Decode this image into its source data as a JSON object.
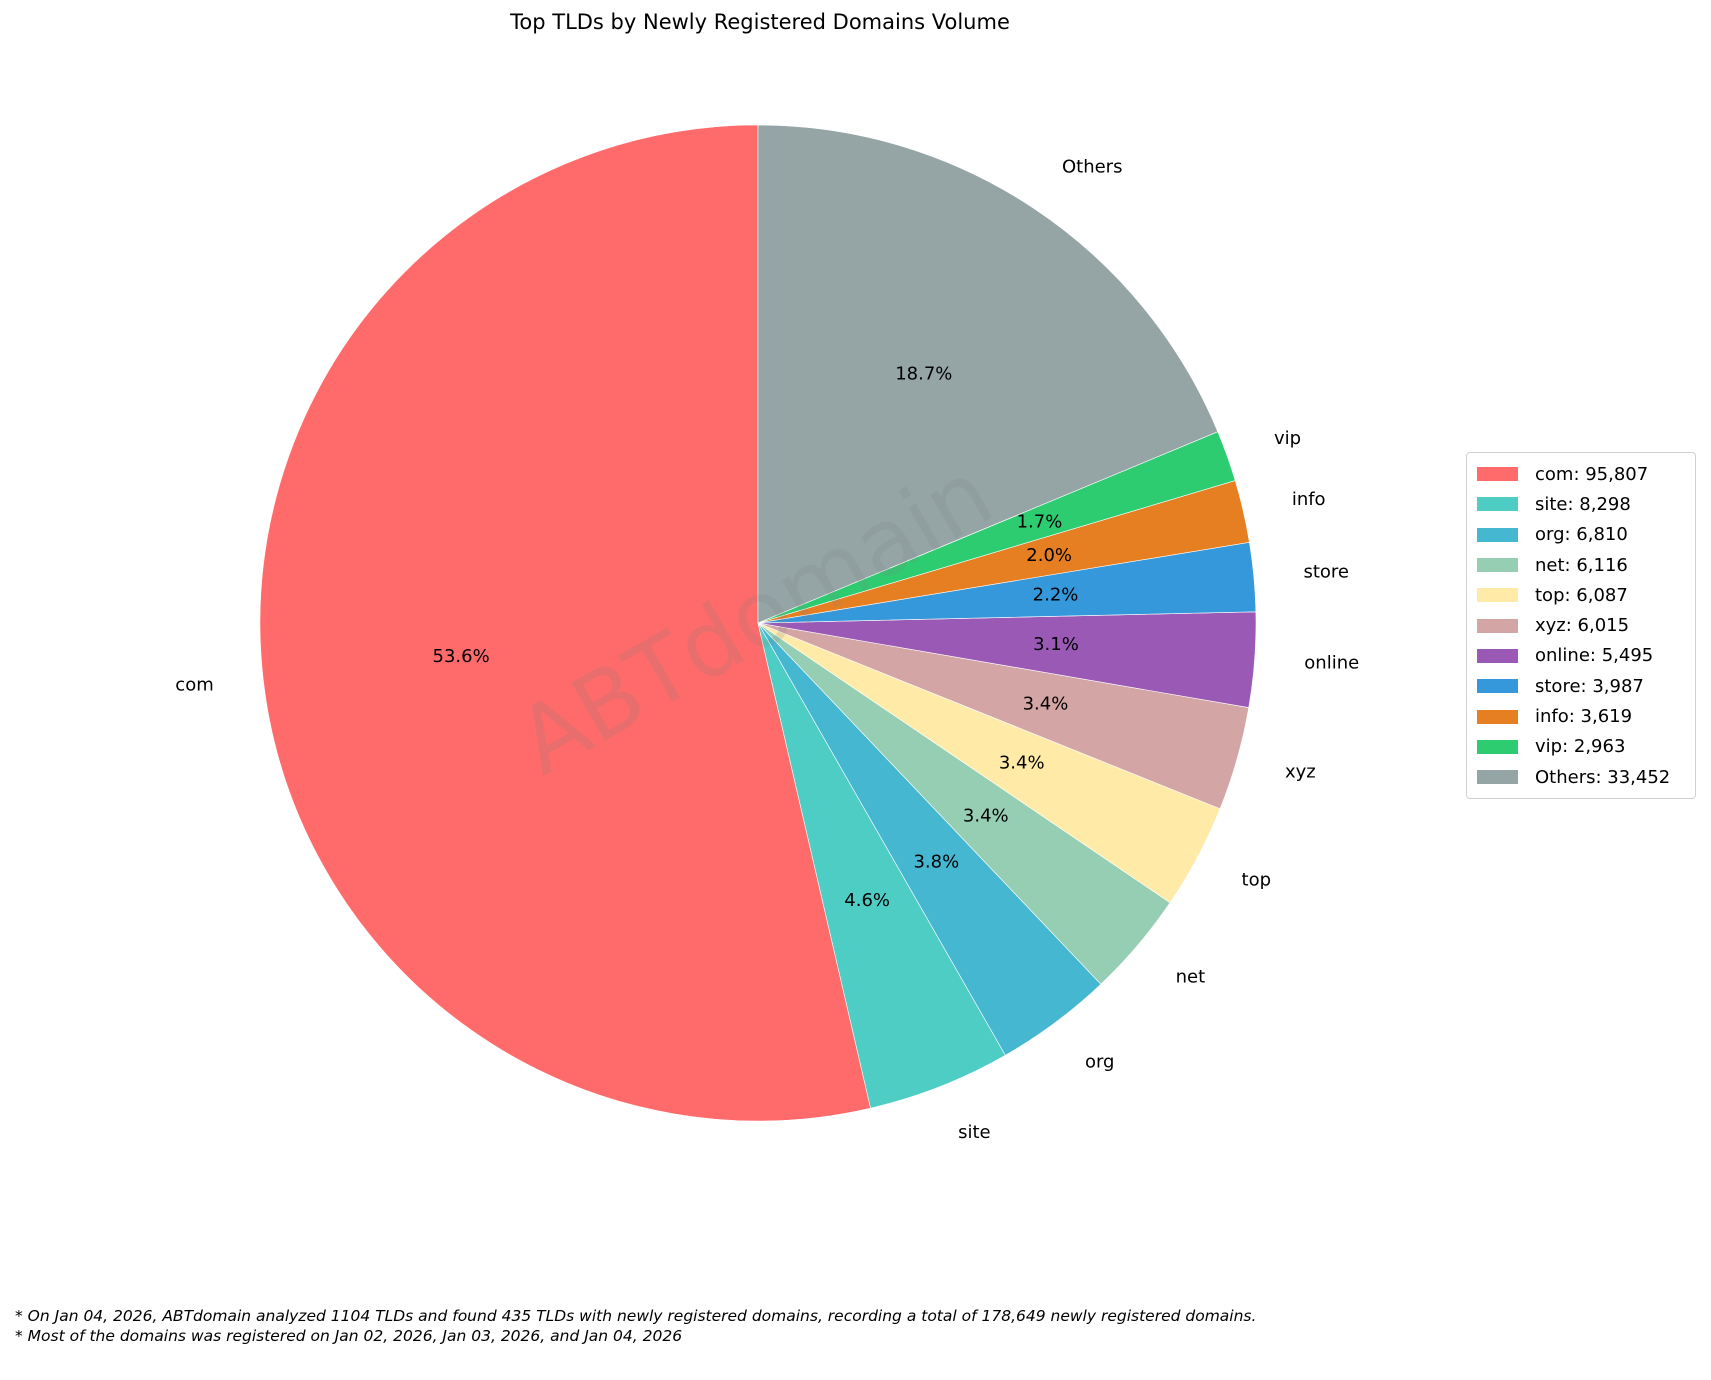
{
  "title": "Top TLDs by Newly Registered Domains Volume",
  "watermark": "ABTdomain",
  "footer": {
    "line1": "* On Jan 04, 2026, ABTdomain analyzed 1104 TLDs and found 435 TLDs with newly registered domains, recording a total of 178,649 newly registered domains.",
    "line2": "* Most of the domains was registered on Jan 02, 2026, Jan 03, 2026, and Jan 04, 2026"
  },
  "legend": [
    {
      "label": "com: 95,807"
    },
    {
      "label": "site: 8,298"
    },
    {
      "label": "org: 6,810"
    },
    {
      "label": "net: 6,116"
    },
    {
      "label": "top: 6,087"
    },
    {
      "label": "xyz: 6,015"
    },
    {
      "label": "online: 5,495"
    },
    {
      "label": "store: 3,987"
    },
    {
      "label": "info: 3,619"
    },
    {
      "label": "vip: 2,963"
    },
    {
      "label": "Others: 33,452"
    }
  ],
  "chart_data": {
    "type": "pie",
    "title": "Top TLDs by Newly Registered Domains Volume",
    "start_angle": 90,
    "direction": "counterclockwise",
    "legend_position": "right",
    "total": 178649,
    "categories": [
      "com",
      "site",
      "org",
      "net",
      "top",
      "xyz",
      "online",
      "store",
      "info",
      "vip",
      "Others"
    ],
    "values": [
      95807,
      8298,
      6810,
      6116,
      6087,
      6015,
      5495,
      3987,
      3619,
      2963,
      33452
    ],
    "percent_labels": [
      "53.6%",
      "4.6%",
      "3.8%",
      "3.4%",
      "3.4%",
      "3.4%",
      "3.1%",
      "2.2%",
      "2.0%",
      "1.7%",
      "18.7%"
    ],
    "colors": [
      "#FF6B6B",
      "#4ECDC4",
      "#45B7D1",
      "#96CEB4",
      "#FFEAA7",
      "#D4A5A5",
      "#9B59B6",
      "#3498DB",
      "#E67E22",
      "#2ECC71",
      "#95A5A6"
    ]
  }
}
